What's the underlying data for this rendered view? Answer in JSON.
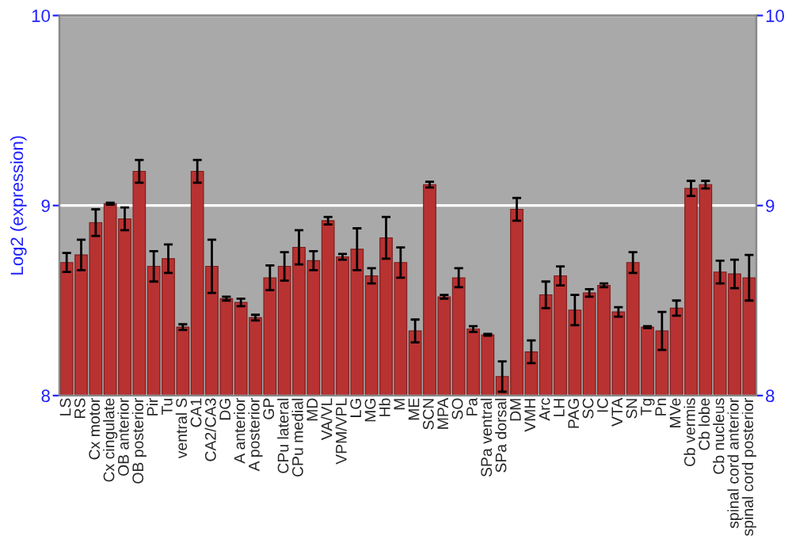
{
  "chart_data": {
    "type": "bar",
    "ylabel": "Log2 (expression)",
    "categories": [
      "LS",
      "RS",
      "Cx motor",
      "Cx cingulate",
      "OB anterior",
      "OB posterior",
      "Pir",
      "Tu",
      "ventral S",
      "CA1",
      "CA2/CA3",
      "DG",
      "A anterior",
      "A posterior",
      "GP",
      "CPu lateral",
      "CPu medial",
      "MD",
      "VA/VL",
      "VPM/VPL",
      "LG",
      "MG",
      "Hb",
      "M",
      "ME",
      "SCN",
      "MPA",
      "SO",
      "Pa",
      "SPa ventral",
      "SPa dorsal",
      "DM",
      "VMH",
      "Arc",
      "LH",
      "PAG",
      "SC",
      "IC",
      "VTA",
      "SN",
      "Tg",
      "Pn",
      "MVe",
      "Cb vermis",
      "Cb lobe",
      "Cb nucleus",
      "spinal cord anterior",
      "spinal cord posterior"
    ],
    "values": [
      8.7,
      8.74,
      8.91,
      9.01,
      8.93,
      9.18,
      8.68,
      8.72,
      8.36,
      9.18,
      8.68,
      8.51,
      8.49,
      8.41,
      8.62,
      8.68,
      8.78,
      8.71,
      8.92,
      8.73,
      8.77,
      8.63,
      8.83,
      8.7,
      8.34,
      9.11,
      8.52,
      8.62,
      8.35,
      8.32,
      8.1,
      8.98,
      8.23,
      8.53,
      8.63,
      8.45,
      8.54,
      8.58,
      8.44,
      8.7,
      8.36,
      8.34,
      8.46,
      9.09,
      9.11,
      8.65,
      8.64,
      8.62
    ],
    "errors": [
      0.05,
      0.08,
      0.07,
      0.005,
      0.06,
      0.06,
      0.08,
      0.075,
      0.015,
      0.06,
      0.14,
      0.01,
      0.02,
      0.015,
      0.065,
      0.075,
      0.09,
      0.05,
      0.02,
      0.015,
      0.11,
      0.04,
      0.11,
      0.08,
      0.06,
      0.015,
      0.01,
      0.05,
      0.015,
      0.005,
      0.08,
      0.06,
      0.06,
      0.07,
      0.05,
      0.08,
      0.02,
      0.01,
      0.025,
      0.055,
      0.005,
      0.1,
      0.04,
      0.04,
      0.02,
      0.06,
      0.075,
      0.12
    ],
    "color": "#b83232",
    "ylim": [
      8,
      10
    ],
    "yticks": [
      8,
      9,
      10
    ],
    "y2lim": [
      8,
      10
    ],
    "y2ticks": [
      8,
      9,
      10
    ],
    "grid": "y",
    "legend": false
  }
}
